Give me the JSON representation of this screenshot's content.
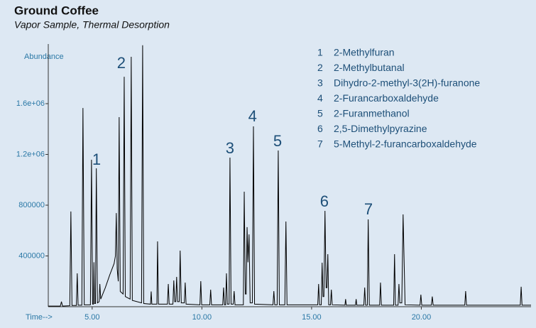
{
  "chart_data": {
    "type": "line",
    "title": "Ground Coffee",
    "subtitle": "Vapor Sample, Thermal Desorption",
    "x_label": "Time-->",
    "y_label": "Abundance",
    "color": "#000000",
    "xlim": [
      3.0,
      25.0
    ],
    "ylim": [
      0,
      2070000
    ],
    "xticks": [
      {
        "value": 5,
        "label": "5.00"
      },
      {
        "value": 10,
        "label": "10.00"
      },
      {
        "value": 15,
        "label": "15.00"
      },
      {
        "value": 20,
        "label": "20.00"
      }
    ],
    "yticks": [
      400000,
      800000,
      {
        "value": 1200000,
        "label": "1.2e+06"
      },
      {
        "value": 1600000,
        "label": "1.6e+06"
      }
    ],
    "x": [
      3.0,
      3.55,
      3.6,
      3.65,
      3.98,
      4.03,
      4.08,
      4.28,
      4.32,
      4.36,
      4.53,
      4.58,
      4.64,
      4.92,
      4.97,
      5.02,
      5.06,
      5.08,
      5.11,
      5.15,
      5.19,
      5.24,
      5.32,
      5.35,
      5.39,
      5.6,
      5.8,
      6.0,
      6.06,
      6.1,
      6.14,
      6.19,
      6.23,
      6.28,
      6.41,
      6.46,
      6.51,
      6.73,
      6.78,
      6.83,
      7.25,
      7.3,
      7.35,
      7.66,
      7.69,
      7.72,
      7.95,
      7.98,
      8.02,
      8.43,
      8.47,
      8.51,
      8.68,
      8.72,
      8.76,
      8.81,
      8.85,
      8.89,
      8.97,
      9.01,
      9.06,
      9.2,
      9.24,
      9.28,
      9.91,
      9.95,
      9.99,
      10.36,
      10.4,
      10.44,
      10.95,
      10.99,
      11.03,
      11.08,
      11.12,
      11.16,
      11.24,
      11.28,
      11.33,
      11.43,
      11.47,
      11.51,
      11.89,
      11.93,
      11.98,
      12.02,
      12.06,
      12.1,
      12.15,
      12.2,
      12.3,
      12.35,
      12.4,
      13.24,
      13.28,
      13.32,
      13.43,
      13.48,
      13.53,
      13.78,
      13.83,
      13.88,
      15.28,
      15.32,
      15.36,
      15.44,
      15.48,
      15.52,
      15.56,
      15.61,
      15.66,
      15.7,
      15.74,
      15.78,
      15.86,
      15.9,
      15.94,
      16.52,
      16.55,
      16.58,
      17.0,
      17.03,
      17.06,
      17.38,
      17.42,
      17.46,
      17.54,
      17.58,
      17.63,
      18.1,
      18.14,
      18.18,
      18.74,
      18.78,
      18.82,
      18.94,
      18.98,
      19.02,
      19.11,
      19.17,
      19.26,
      19.94,
      19.98,
      20.02,
      20.46,
      20.5,
      20.54,
      21.98,
      22.02,
      22.06,
      24.51,
      24.55,
      24.59,
      25.0
    ],
    "values": [
      5000,
      5000,
      40000,
      5000,
      8000,
      750000,
      10000,
      10000,
      263000,
      12000,
      12000,
      1566000,
      15000,
      15000,
      1158000,
      20000,
      20000,
      350000,
      25000,
      25000,
      1090000,
      30000,
      40000,
      179000,
      60000,
      150000,
      250000,
      340000,
      400000,
      738000,
      300000,
      200000,
      1494000,
      120000,
      100000,
      1812000,
      80000,
      60000,
      1969000,
      50000,
      30000,
      2060000,
      25000,
      20000,
      120000,
      20000,
      20000,
      515000,
      20000,
      20000,
      179000,
      20000,
      20000,
      207000,
      40000,
      40000,
      235000,
      40000,
      40000,
      442000,
      30000,
      30000,
      190000,
      20000,
      15000,
      201000,
      15000,
      15000,
      134000,
      15000,
      15000,
      151000,
      15000,
      15000,
      263000,
      20000,
      20000,
      1175000,
      20000,
      20000,
      123000,
      15000,
      15000,
      906000,
      100000,
      100000,
      627000,
      350000,
      570000,
      30000,
      30000,
      1421000,
      20000,
      15000,
      123000,
      15000,
      15000,
      1231000,
      15000,
      15000,
      671000,
      15000,
      15000,
      179000,
      15000,
      15000,
      347000,
      80000,
      80000,
      755000,
      150000,
      150000,
      414000,
      15000,
      15000,
      134000,
      15000,
      12000,
      60000,
      12000,
      12000,
      60000,
      12000,
      12000,
      151000,
      12000,
      12000,
      688000,
      12000,
      12000,
      190000,
      12000,
      12000,
      414000,
      12000,
      12000,
      179000,
      30000,
      30000,
      727000,
      15000,
      12000,
      95000,
      12000,
      12000,
      80000,
      12000,
      12000,
      123000,
      12000,
      12000,
      157000,
      12000,
      12000
    ],
    "annotations": [
      {
        "text": "1",
        "x": 5.2,
        "y": 1152000
      },
      {
        "text": "2",
        "x": 6.33,
        "y": 1913000
      },
      {
        "text": "3",
        "x": 11.28,
        "y": 1242000
      },
      {
        "text": "4",
        "x": 12.31,
        "y": 1494000
      },
      {
        "text": "5",
        "x": 13.45,
        "y": 1298000
      },
      {
        "text": "6",
        "x": 15.58,
        "y": 822000
      },
      {
        "text": "7",
        "x": 17.59,
        "y": 761000
      }
    ],
    "compounds": [
      {
        "number": "1",
        "name": "2-Methylfuran"
      },
      {
        "number": "2",
        "name": "2-Methylbutanal"
      },
      {
        "number": "3",
        "name": "Dihydro-2-methyl-3(2H)-furanone"
      },
      {
        "number": "4",
        "name": "2-Furancarboxaldehyde"
      },
      {
        "number": "5",
        "name": "2-Furanmethanol"
      },
      {
        "number": "6",
        "name": "2,5-Dimethylpyrazine"
      },
      {
        "number": "7",
        "name": "5-Methyl-2-furancarboxaldehyde"
      }
    ]
  }
}
